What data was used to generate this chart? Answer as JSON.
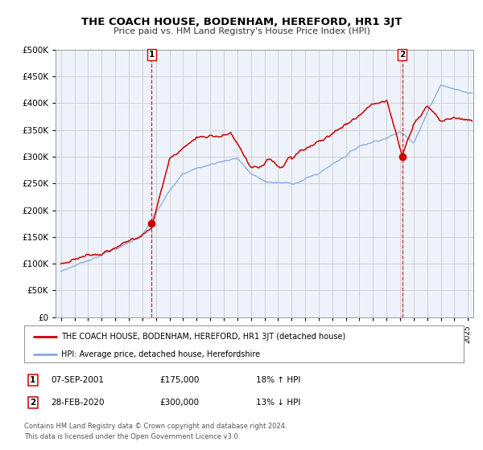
{
  "title": "THE COACH HOUSE, BODENHAM, HEREFORD, HR1 3JT",
  "subtitle": "Price paid vs. HM Land Registry's House Price Index (HPI)",
  "legend_line1": "THE COACH HOUSE, BODENHAM, HEREFORD, HR1 3JT (detached house)",
  "legend_line2": "HPI: Average price, detached house, Herefordshire",
  "sale1_date": "07-SEP-2001",
  "sale1_price": "£175,000",
  "sale1_hpi": "18% ↑ HPI",
  "sale2_date": "28-FEB-2020",
  "sale2_price": "£300,000",
  "sale2_hpi": "13% ↓ HPI",
  "footer": "Contains HM Land Registry data © Crown copyright and database right 2024.\nThis data is licensed under the Open Government Licence v3.0.",
  "red_color": "#cc0000",
  "blue_color": "#88aadd",
  "grid_color": "#cccccc",
  "bg_color": "#eef2fa",
  "ylim": [
    0,
    500000
  ],
  "yticks": [
    0,
    50000,
    100000,
    150000,
    200000,
    250000,
    300000,
    350000,
    400000,
    450000,
    500000
  ],
  "sale1_x": 2001.67,
  "sale1_y": 175000,
  "sale2_x": 2020.16,
  "sale2_y": 300000,
  "vline1_x": 2001.67,
  "vline2_x": 2020.16,
  "xlim_left": 1994.6,
  "xlim_right": 2025.4
}
